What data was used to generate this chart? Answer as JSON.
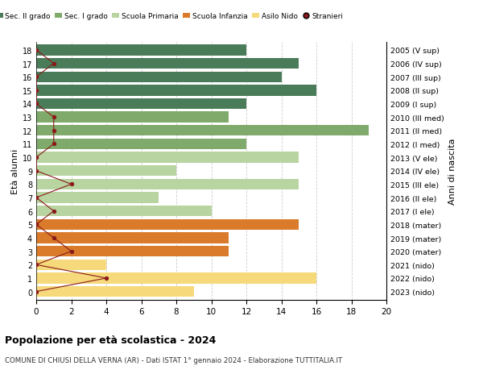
{
  "ages": [
    18,
    17,
    16,
    15,
    14,
    13,
    12,
    11,
    10,
    9,
    8,
    7,
    6,
    5,
    4,
    3,
    2,
    1,
    0
  ],
  "years": [
    "2005 (V sup)",
    "2006 (IV sup)",
    "2007 (III sup)",
    "2008 (II sup)",
    "2009 (I sup)",
    "2010 (III med)",
    "2011 (II med)",
    "2012 (I med)",
    "2013 (V ele)",
    "2014 (IV ele)",
    "2015 (III ele)",
    "2016 (II ele)",
    "2017 (I ele)",
    "2018 (mater)",
    "2019 (mater)",
    "2020 (mater)",
    "2021 (nido)",
    "2022 (nido)",
    "2023 (nido)"
  ],
  "values": [
    12,
    15,
    14,
    16,
    12,
    11,
    19,
    12,
    15,
    8,
    15,
    7,
    10,
    15,
    11,
    11,
    4,
    16,
    9
  ],
  "stranieri": [
    0,
    1,
    0,
    0,
    0,
    1,
    1,
    1,
    0,
    0,
    2,
    0,
    1,
    0,
    1,
    2,
    0,
    4,
    0
  ],
  "bar_colors": [
    "#4a7c59",
    "#4a7c59",
    "#4a7c59",
    "#4a7c59",
    "#4a7c59",
    "#7faa6b",
    "#7faa6b",
    "#7faa6b",
    "#b8d4a0",
    "#b8d4a0",
    "#b8d4a0",
    "#b8d4a0",
    "#b8d4a0",
    "#d97b2b",
    "#d97b2b",
    "#d97b2b",
    "#f5d97a",
    "#f5d97a",
    "#f5d97a"
  ],
  "legend_labels": [
    "Sec. II grado",
    "Sec. I grado",
    "Scuola Primaria",
    "Scuola Infanzia",
    "Asilo Nido",
    "Stranieri"
  ],
  "legend_colors": [
    "#4a7c59",
    "#7faa6b",
    "#b8d4a0",
    "#d97b2b",
    "#f5d97a",
    "#8b1a1a"
  ],
  "stranieri_color": "#8b1a1a",
  "title": "Popolazione per età scolastica - 2024",
  "subtitle": "COMUNE DI CHIUSI DELLA VERNA (AR) - Dati ISTAT 1° gennaio 2024 - Elaborazione TUTTITALIA.IT",
  "ylabel": "Età alunni",
  "ylabel2": "Anni di nascita",
  "xlim": [
    0,
    20
  ],
  "xticks": [
    0,
    2,
    4,
    6,
    8,
    10,
    12,
    14,
    16,
    18,
    20
  ],
  "bar_height": 0.8,
  "bg_color": "#ffffff",
  "grid_color": "#cccccc"
}
